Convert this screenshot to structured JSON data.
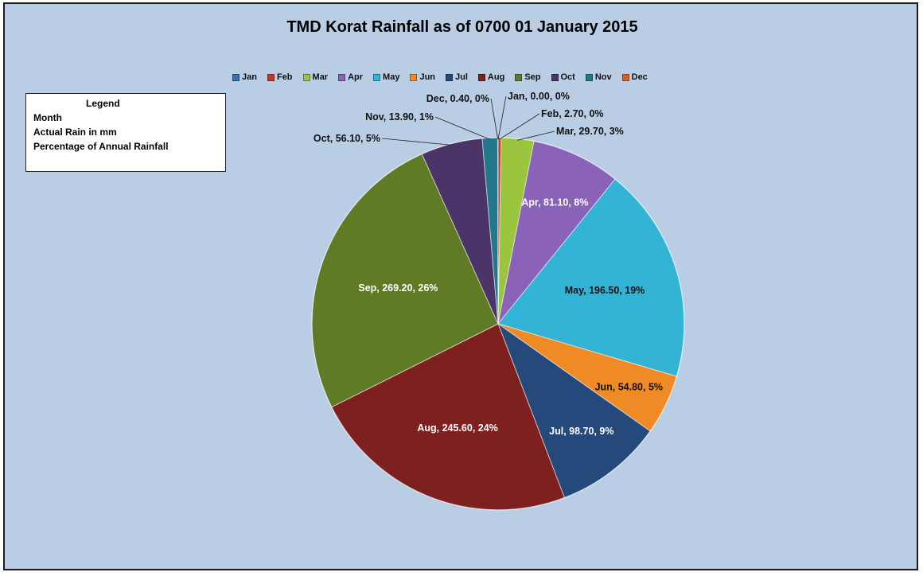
{
  "chart_data": {
    "type": "pie",
    "title": "TMD Korat Rainfall as of 0700 01 January 2015",
    "categories": [
      "Jan",
      "Feb",
      "Mar",
      "Apr",
      "May",
      "Jun",
      "Jul",
      "Aug",
      "Sep",
      "Oct",
      "Nov",
      "Dec"
    ],
    "values": [
      0.0,
      2.7,
      29.7,
      81.1,
      196.5,
      54.8,
      98.7,
      245.6,
      269.2,
      56.1,
      13.9,
      0.4
    ],
    "data_labels": [
      "Jan, 0.00, 0%",
      "Feb, 2.70, 0%",
      "Mar, 29.70, 3%",
      "Apr, 81.10, 8%",
      "May, 196.50, 19%",
      "Jun, 54.80, 5%",
      "Jul, 98.70, 9%",
      "Aug, 245.60, 24%",
      "Sep, 269.20, 26%",
      "Oct, 56.10, 5%",
      "Nov, 13.90, 1%",
      "Dec, 0.40, 0%"
    ],
    "colors": [
      "#3a6fb0",
      "#c0392b",
      "#9bc43f",
      "#8a63b8",
      "#33b3d6",
      "#f08a24",
      "#24497a",
      "#7f2020",
      "#607a26",
      "#4a3468",
      "#20788a",
      "#d4611c"
    ],
    "legend_position": "top"
  },
  "legend_box": {
    "title": "Legend",
    "lines": [
      "Month",
      "Actual Rain in mm",
      "Percentage of Annual Rainfall"
    ]
  }
}
